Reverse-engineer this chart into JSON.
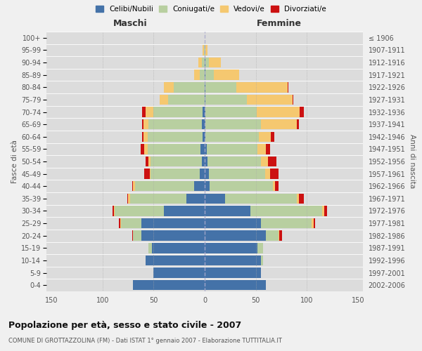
{
  "age_groups": [
    "0-4",
    "5-9",
    "10-14",
    "15-19",
    "20-24",
    "25-29",
    "30-34",
    "35-39",
    "40-44",
    "45-49",
    "50-54",
    "55-59",
    "60-64",
    "65-69",
    "70-74",
    "75-79",
    "80-84",
    "85-89",
    "90-94",
    "95-99",
    "100+"
  ],
  "birth_years": [
    "2002-2006",
    "1997-2001",
    "1992-1996",
    "1987-1991",
    "1982-1986",
    "1977-1981",
    "1972-1976",
    "1967-1971",
    "1962-1966",
    "1957-1961",
    "1952-1956",
    "1947-1951",
    "1942-1946",
    "1937-1941",
    "1932-1936",
    "1927-1931",
    "1922-1926",
    "1917-1921",
    "1912-1916",
    "1907-1911",
    "≤ 1906"
  ],
  "males_celibi": [
    70,
    50,
    58,
    52,
    62,
    62,
    40,
    18,
    10,
    5,
    3,
    4,
    2,
    3,
    2,
    0,
    0,
    0,
    0,
    0,
    0
  ],
  "males_coniugati": [
    0,
    0,
    0,
    3,
    8,
    20,
    48,
    55,
    58,
    48,
    50,
    52,
    54,
    52,
    48,
    36,
    30,
    5,
    3,
    1,
    0
  ],
  "males_vedovi": [
    0,
    0,
    0,
    0,
    0,
    1,
    1,
    2,
    2,
    1,
    2,
    3,
    4,
    5,
    8,
    8,
    10,
    5,
    3,
    1,
    0
  ],
  "males_divorziati": [
    0,
    0,
    0,
    0,
    1,
    1,
    1,
    1,
    1,
    5,
    3,
    4,
    1,
    1,
    3,
    0,
    0,
    0,
    0,
    0,
    0
  ],
  "females_nubili": [
    60,
    55,
    55,
    52,
    60,
    55,
    45,
    20,
    5,
    4,
    3,
    2,
    1,
    1,
    1,
    1,
    1,
    1,
    1,
    0,
    0
  ],
  "females_coniugate": [
    0,
    0,
    2,
    5,
    12,
    50,
    70,
    70,
    62,
    55,
    52,
    50,
    52,
    54,
    50,
    40,
    30,
    8,
    3,
    1,
    0
  ],
  "females_vedove": [
    0,
    0,
    0,
    0,
    1,
    2,
    2,
    2,
    2,
    5,
    7,
    8,
    12,
    35,
    42,
    45,
    50,
    25,
    12,
    2,
    0
  ],
  "females_divorziate": [
    0,
    0,
    0,
    0,
    3,
    1,
    3,
    5,
    3,
    8,
    8,
    4,
    3,
    2,
    4,
    1,
    1,
    0,
    0,
    0,
    0
  ],
  "colors": {
    "celibi_nubili": "#4472a8",
    "coniugati": "#b8cfa0",
    "vedovi": "#f5c870",
    "divorziati": "#cc1111"
  },
  "title": "Popolazione per età, sesso e stato civile - 2007",
  "subtitle": "COMUNE DI GROTTAZZOLINA (FM) - Dati ISTAT 1° gennaio 2007 - Elaborazione TUTTITALIA.IT",
  "xlabel_left": "Maschi",
  "xlabel_right": "Femmine",
  "ylabel_left": "Fasce di età",
  "ylabel_right": "Anni di nascita",
  "xlim": 155,
  "legend_labels": [
    "Celibi/Nubili",
    "Coniugati/e",
    "Vedovi/e",
    "Divorziati/e"
  ]
}
